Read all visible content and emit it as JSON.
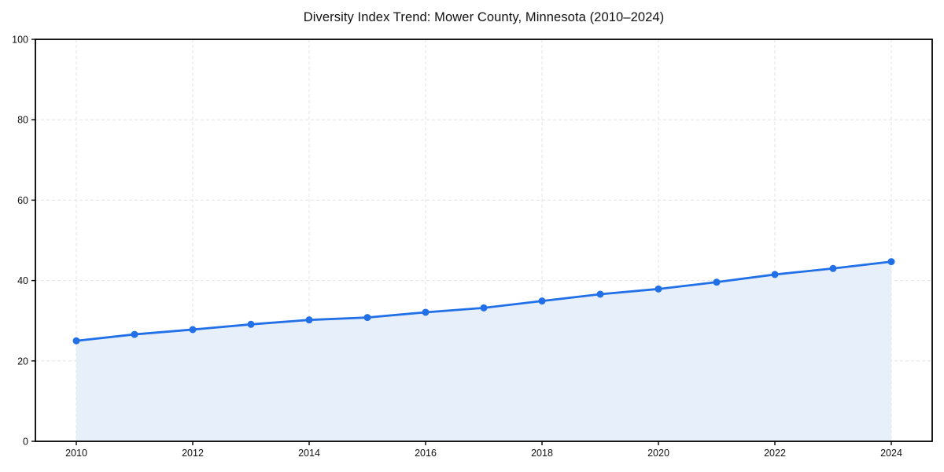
{
  "chart_data": {
    "type": "line",
    "title": "Diversity Index Trend: Mower County, Minnesota (2010–2024)",
    "x": [
      2010,
      2011,
      2012,
      2013,
      2014,
      2015,
      2016,
      2017,
      2018,
      2019,
      2020,
      2021,
      2022,
      2023,
      2024
    ],
    "series": [
      {
        "name": "Diversity Index",
        "values": [
          25.0,
          26.6,
          27.8,
          29.1,
          30.2,
          30.8,
          32.1,
          33.2,
          34.9,
          36.6,
          37.9,
          39.6,
          41.5,
          43.0,
          44.7
        ]
      }
    ],
    "xticks": [
      2010,
      2012,
      2014,
      2016,
      2018,
      2020,
      2022,
      2024
    ],
    "yticks": [
      0,
      20,
      40,
      60,
      80,
      100
    ],
    "ylim": [
      0,
      100
    ],
    "xlabel": "",
    "ylabel": "",
    "grid": true,
    "grid_style": "dashed",
    "legend": false,
    "marker": "circle",
    "style": {
      "line_color": "#2170e8",
      "marker_color": "#2170e8",
      "fill_color": "#e7effb",
      "grid_color": "#e3e3e3",
      "axis_color": "#000000",
      "text_color": "#111111",
      "background": "#ffffff"
    }
  }
}
